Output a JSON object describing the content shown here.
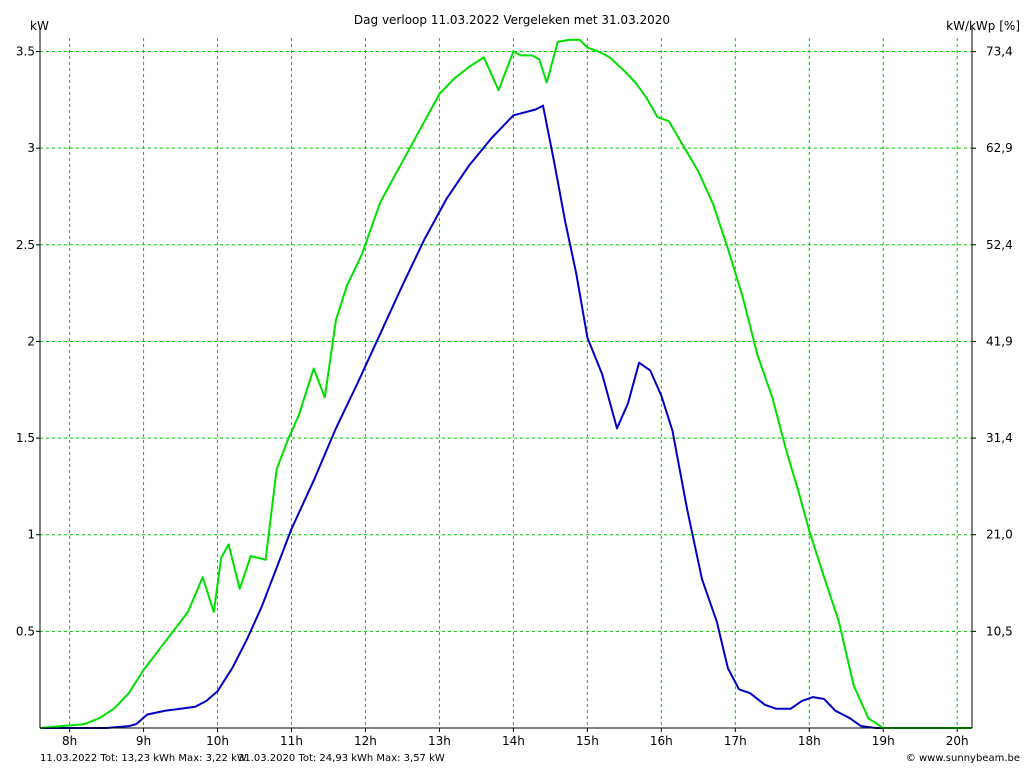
{
  "chart_data": {
    "type": "line",
    "title": "Dag  verloop 11.03.2022   Vergeleken met 31.03.2020",
    "ylabel_left": "kW",
    "ylabel_right": "kW/kWp [%]",
    "x_ticks": [
      8,
      9,
      10,
      11,
      12,
      13,
      14,
      15,
      16,
      17,
      18,
      19,
      20
    ],
    "x_tick_labels": [
      "8h",
      "9h",
      "10h",
      "11h",
      "12h",
      "13h",
      "14h",
      "15h",
      "16h",
      "17h",
      "18h",
      "19h",
      "20h"
    ],
    "xlim": [
      7.6,
      20.2
    ],
    "ylim": [
      0,
      3.57
    ],
    "y_ticks": [
      0.5,
      1,
      1.5,
      2,
      2.5,
      3,
      3.5
    ],
    "y_tick_labels": [
      "0.5",
      "1",
      "1.5",
      "2",
      "2.5",
      "3",
      "3.5"
    ],
    "y2_ticks": [
      0.5,
      1,
      1.5,
      2,
      2.5,
      3,
      3.5
    ],
    "y2_tick_labels": [
      "10,5",
      "21,0",
      "31,4",
      "41,9",
      "52,4",
      "62,9",
      "73,4"
    ],
    "grid": true,
    "series": [
      {
        "date": "11.03.2022",
        "color": "#0000c8",
        "x": [
          7.6,
          8.5,
          8.8,
          8.9,
          9.05,
          9.3,
          9.5,
          9.7,
          9.85,
          10.0,
          10.2,
          10.4,
          10.6,
          10.8,
          11.0,
          11.3,
          11.6,
          11.9,
          12.2,
          12.5,
          12.8,
          13.1,
          13.4,
          13.7,
          14.0,
          14.3,
          14.4,
          14.55,
          14.7,
          14.85,
          15.0,
          15.2,
          15.4,
          15.55,
          15.7,
          15.85,
          16.0,
          16.15,
          16.35,
          16.55,
          16.75,
          16.9,
          17.05,
          17.2,
          17.4,
          17.55,
          17.75,
          17.9,
          18.05,
          18.2,
          18.35,
          18.55,
          18.7,
          18.9,
          19.1,
          19.5,
          20.0
        ],
        "y": [
          0,
          0,
          0.01,
          0.02,
          0.07,
          0.09,
          0.1,
          0.11,
          0.14,
          0.19,
          0.31,
          0.46,
          0.63,
          0.83,
          1.03,
          1.28,
          1.55,
          1.79,
          2.04,
          2.29,
          2.53,
          2.74,
          2.91,
          3.05,
          3.17,
          3.2,
          3.22,
          2.93,
          2.62,
          2.35,
          2.02,
          1.83,
          1.55,
          1.68,
          1.89,
          1.85,
          1.72,
          1.54,
          1.13,
          0.77,
          0.55,
          0.31,
          0.2,
          0.18,
          0.12,
          0.1,
          0.1,
          0.14,
          0.16,
          0.15,
          0.09,
          0.05,
          0.01,
          0,
          0,
          0,
          0
        ]
      },
      {
        "date": "31.03.2020",
        "color": "#00e000",
        "x": [
          7.6,
          8.2,
          8.4,
          8.6,
          8.8,
          9.0,
          9.2,
          9.4,
          9.6,
          9.8,
          9.95,
          10.05,
          10.15,
          10.3,
          10.45,
          10.65,
          10.8,
          10.95,
          11.1,
          11.3,
          11.45,
          11.6,
          11.75,
          11.95,
          12.2,
          12.4,
          12.6,
          12.8,
          13.0,
          13.2,
          13.4,
          13.6,
          13.8,
          14.0,
          14.1,
          14.25,
          14.35,
          14.45,
          14.6,
          14.75,
          14.9,
          15.0,
          15.15,
          15.3,
          15.5,
          15.65,
          15.8,
          15.95,
          16.1,
          16.3,
          16.5,
          16.7,
          16.9,
          17.1,
          17.3,
          17.5,
          17.7,
          17.85,
          18.0,
          18.2,
          18.4,
          18.6,
          18.8,
          19.0,
          19.2,
          19.4,
          19.6,
          19.8,
          20.0,
          20.2
        ],
        "y": [
          0,
          0.02,
          0.05,
          0.1,
          0.18,
          0.3,
          0.4,
          0.5,
          0.6,
          0.78,
          0.6,
          0.88,
          0.95,
          0.72,
          0.89,
          0.87,
          1.34,
          1.49,
          1.62,
          1.86,
          1.71,
          2.11,
          2.29,
          2.45,
          2.72,
          2.86,
          3.0,
          3.14,
          3.28,
          3.36,
          3.42,
          3.47,
          3.3,
          3.5,
          3.48,
          3.48,
          3.46,
          3.34,
          3.55,
          3.56,
          3.56,
          3.52,
          3.5,
          3.47,
          3.4,
          3.34,
          3.26,
          3.16,
          3.14,
          3.01,
          2.88,
          2.71,
          2.48,
          2.23,
          1.93,
          1.71,
          1.42,
          1.23,
          1.02,
          0.78,
          0.55,
          0.22,
          0.05,
          0,
          0,
          0,
          0,
          0,
          0,
          0
        ]
      }
    ]
  },
  "footer": {
    "series1_text": "11.03.2022 Tot: 13,23 kWh Max: 3,22 kW",
    "series2_text": "31.03.2020 Tot: 24,93 kWh Max: 3,57 kW",
    "credit": "© www.sunnybeam.be"
  }
}
